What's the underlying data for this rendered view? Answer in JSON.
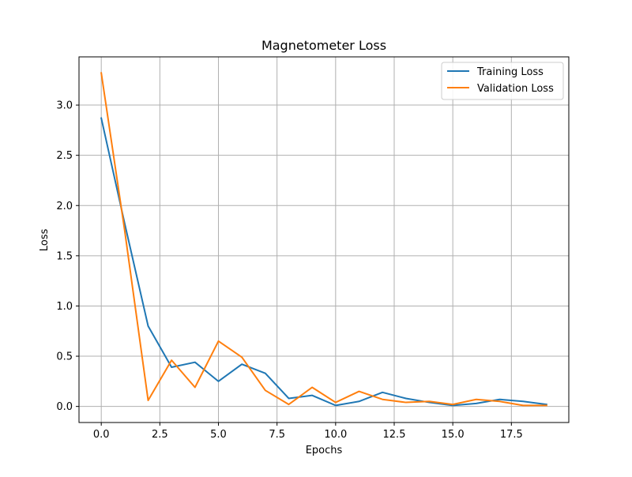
{
  "chart_data": {
    "type": "line",
    "title": "Magnetometer Loss",
    "xlabel": "Epochs",
    "ylabel": "Loss",
    "xlim": [
      -0.95,
      19.95
    ],
    "ylim": [
      -0.16,
      3.48
    ],
    "grid": true,
    "legend_position": "top-right",
    "x_ticks": [
      {
        "value": 0.0,
        "label": "0.0"
      },
      {
        "value": 2.5,
        "label": "2.5"
      },
      {
        "value": 5.0,
        "label": "5.0"
      },
      {
        "value": 7.5,
        "label": "7.5"
      },
      {
        "value": 10.0,
        "label": "10.0"
      },
      {
        "value": 12.5,
        "label": "12.5"
      },
      {
        "value": 15.0,
        "label": "15.0"
      },
      {
        "value": 17.5,
        "label": "17.5"
      }
    ],
    "y_ticks": [
      {
        "value": 0.0,
        "label": "0.0"
      },
      {
        "value": 0.5,
        "label": "0.5"
      },
      {
        "value": 1.0,
        "label": "1.0"
      },
      {
        "value": 1.5,
        "label": "1.5"
      },
      {
        "value": 2.0,
        "label": "2.0"
      },
      {
        "value": 2.5,
        "label": "2.5"
      },
      {
        "value": 3.0,
        "label": "3.0"
      }
    ],
    "x": [
      0,
      1,
      2,
      3,
      4,
      5,
      6,
      7,
      8,
      9,
      10,
      11,
      12,
      13,
      14,
      15,
      16,
      17,
      18,
      19
    ],
    "series": [
      {
        "name": "Training Loss",
        "color": "#1f77b4",
        "values": [
          2.87,
          1.82,
          0.8,
          0.39,
          0.44,
          0.25,
          0.42,
          0.33,
          0.08,
          0.11,
          0.01,
          0.05,
          0.14,
          0.08,
          0.04,
          0.01,
          0.03,
          0.07,
          0.05,
          0.02
        ]
      },
      {
        "name": "Validation Loss",
        "color": "#ff7f0e",
        "values": [
          3.32,
          1.75,
          0.06,
          0.46,
          0.19,
          0.65,
          0.49,
          0.16,
          0.02,
          0.19,
          0.04,
          0.15,
          0.07,
          0.04,
          0.05,
          0.02,
          0.07,
          0.05,
          0.01,
          0.01
        ]
      }
    ]
  }
}
